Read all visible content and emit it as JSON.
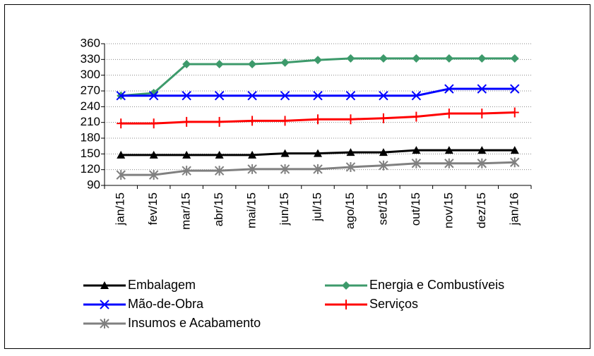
{
  "chart_data": {
    "type": "line",
    "categories": [
      "jan/15",
      "fev/15",
      "mar/15",
      "abr/15",
      "mai/15",
      "jun/15",
      "jul/15",
      "ago/15",
      "set/15",
      "out/15",
      "nov/15",
      "dez/15",
      "jan/16"
    ],
    "series": [
      {
        "name": "Embalagem",
        "color": "#000000",
        "marker": "triangle",
        "values": [
          148,
          148,
          148,
          148,
          148,
          151,
          151,
          153,
          153,
          157,
          157,
          157,
          157
        ]
      },
      {
        "name": "Energia e Combustíveis",
        "color": "#3d9a6b",
        "marker": "diamond",
        "values": [
          261,
          266,
          321,
          321,
          321,
          324,
          329,
          332,
          332,
          332,
          332,
          332,
          332
        ]
      },
      {
        "name": "Mão-de-Obra",
        "color": "#0000ff",
        "marker": "x",
        "values": [
          261,
          261,
          261,
          261,
          261,
          261,
          261,
          261,
          261,
          261,
          274,
          274,
          274
        ]
      },
      {
        "name": "Serviços",
        "color": "#ff0000",
        "marker": "plus",
        "values": [
          208,
          208,
          211,
          211,
          213,
          213,
          216,
          216,
          218,
          221,
          227,
          227,
          229
        ]
      },
      {
        "name": "Insumos e Acabamento",
        "color": "#808080",
        "marker": "star",
        "values": [
          110,
          110,
          118,
          118,
          121,
          121,
          121,
          125,
          128,
          132,
          132,
          132,
          134
        ]
      }
    ],
    "ylim": [
      90,
      360
    ],
    "yticks": [
      90,
      120,
      150,
      180,
      210,
      240,
      270,
      300,
      330,
      360
    ],
    "grid": true
  }
}
